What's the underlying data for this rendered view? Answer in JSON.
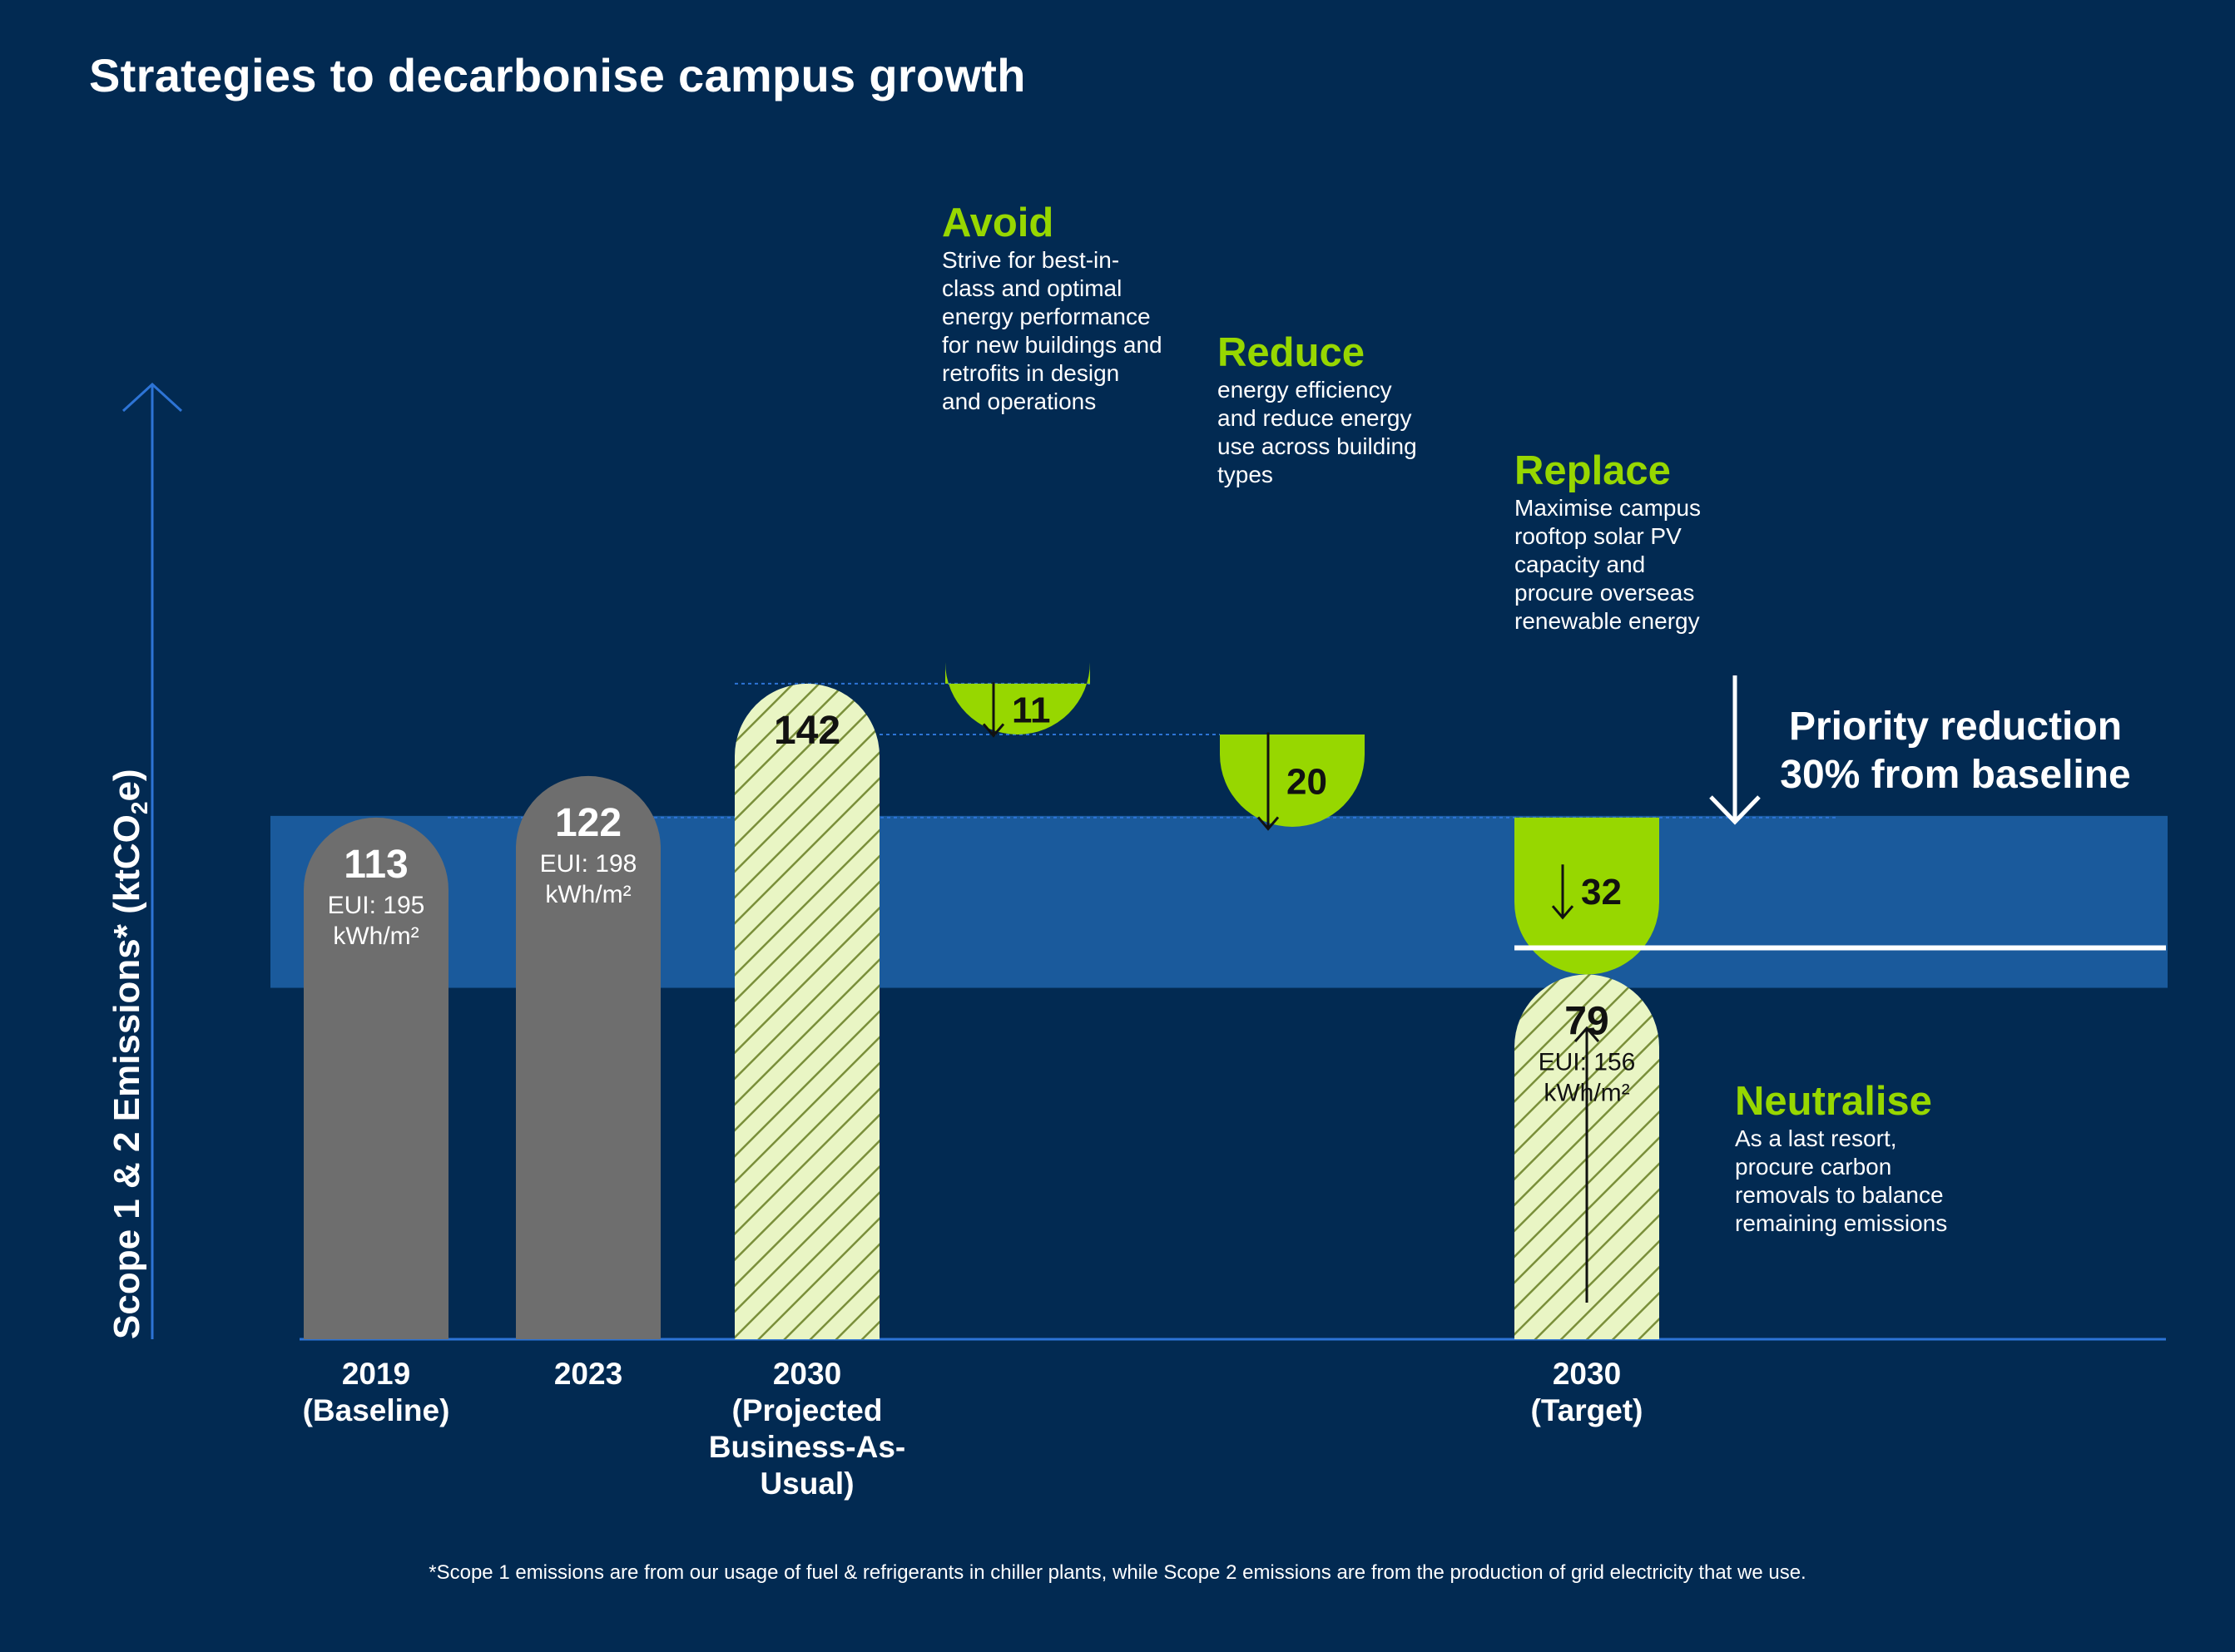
{
  "title": "Strategies to decarbonise campus growth",
  "footnote": "*Scope 1 emissions are from our usage of fuel & refrigerants in chiller plants, while Scope 2 emissions are from the production of grid electricity that we use.",
  "colors": {
    "background": "#022a52",
    "actual_bar": "#6e6e6e",
    "projected_fill": "#e9f5c4",
    "projected_hatch": "#7a8f3a",
    "strategy_green": "#97d700",
    "priority_band": "#1a5a9c",
    "axis": "#2d74d6",
    "text": "#ffffff"
  },
  "chart_data": {
    "type": "bar",
    "title": "Strategies to decarbonise campus growth",
    "ylabel_main": "Scope 1 & 2 Emissions* (ktCO",
    "ylabel_sub": "2",
    "ylabel_tail": "e)",
    "categories": [
      "2019\n(Baseline)",
      "2023",
      "2030\n(Projected\nBusiness-As-\nUsual)",
      "2030\n(Target)"
    ],
    "bars": [
      {
        "category": "2019\n(Baseline)",
        "value": 113,
        "label": "113",
        "eui": "EUI: 195\nkWh/m²",
        "style": "actual"
      },
      {
        "category": "2023",
        "value": 122,
        "label": "122",
        "eui": "EUI: 198\nkWh/m²",
        "style": "actual"
      },
      {
        "category": "2030\n(Projected\nBusiness-As-\nUsual)",
        "value": 142,
        "label": "142",
        "eui": "",
        "style": "projected"
      },
      {
        "category": "2030\n(Target)",
        "value": 79,
        "label": "79",
        "eui": "EUI: 156\nkWh/m²",
        "style": "projected"
      }
    ],
    "reductions": [
      {
        "name": "Avoid",
        "value": 11,
        "label": "11",
        "description": "Strive for best-in-\nclass and optimal\nenergy performance\nfor new buildings and\nretrofits in design\nand operations"
      },
      {
        "name": "Reduce",
        "value": 20,
        "label": "20",
        "description": "energy efficiency\nand reduce energy\nuse across building\ntypes"
      },
      {
        "name": "Replace",
        "value": 32,
        "label": "32",
        "description": "Maximise campus\nrooftop solar PV\ncapacity and\nprocure overseas\nrenewable energy"
      }
    ],
    "neutralise": {
      "name": "Neutralise",
      "description": "As a last resort,\nprocure carbon\nremovals to balance\nremaining emissions"
    },
    "priority_band": {
      "label": "Priority reduction\n30% from baseline",
      "from": 79,
      "to": 113
    },
    "ylim": [
      0,
      165
    ],
    "grid": false,
    "legend": "none"
  }
}
